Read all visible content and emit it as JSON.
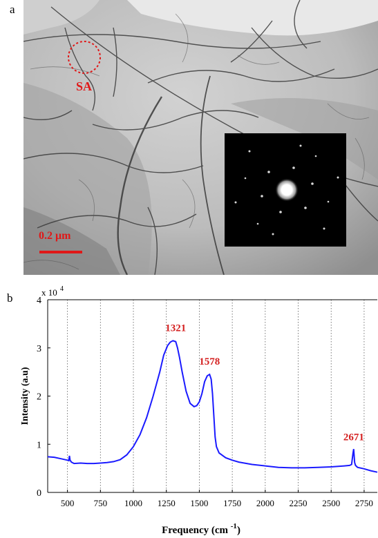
{
  "figure": {
    "panel_a_label": "a",
    "panel_b_label": "b",
    "tem": {
      "selected_area_label": "SA",
      "scale_bar_label": "0.2 μm",
      "highlight_color": "#e01818"
    }
  },
  "chart_data": {
    "type": "line",
    "title": "",
    "xlabel": "Frequency (cm",
    "xlabel_superscript": "-1",
    "xlabel_close": ")",
    "ylabel": "Intensity (a.u)",
    "y_multiplier_label": "x 10",
    "y_multiplier_exponent": "4",
    "xlim": [
      350,
      2850
    ],
    "ylim": [
      0,
      4
    ],
    "xticks": [
      "500",
      "750",
      "1000",
      "1250",
      "1500",
      "1750",
      "2000",
      "2250",
      "2500",
      "2750"
    ],
    "xtick_values": [
      500,
      750,
      1000,
      1250,
      1500,
      1750,
      2000,
      2250,
      2500,
      2750
    ],
    "yticks": [
      "0",
      "1",
      "2",
      "3",
      "4"
    ],
    "ytick_values": [
      0,
      1,
      2,
      3,
      4
    ],
    "grid": "vertical dotted",
    "line_color": "#1a1aff",
    "annotation_color": "#d42020",
    "annotations": [
      {
        "text": "1321",
        "x": 1321,
        "y": 3.35
      },
      {
        "text": "1578",
        "x": 1578,
        "y": 2.65
      },
      {
        "text": "2671",
        "x": 2671,
        "y": 1.08
      }
    ],
    "series": [
      {
        "x": [
          350,
          400,
          450,
          500,
          510,
          515,
          520,
          530,
          550,
          600,
          650,
          700,
          750,
          800,
          850,
          900,
          950,
          1000,
          1050,
          1100,
          1150,
          1200,
          1230,
          1260,
          1280,
          1300,
          1310,
          1321,
          1335,
          1350,
          1370,
          1400,
          1430,
          1460,
          1480,
          1500,
          1520,
          1540,
          1560,
          1578,
          1590,
          1600,
          1610,
          1620,
          1630,
          1650,
          1700,
          1750,
          1800,
          1900,
          2000,
          2100,
          2200,
          2300,
          2400,
          2500,
          2600,
          2640,
          2655,
          2665,
          2671,
          2678,
          2685,
          2700,
          2750,
          2800,
          2850
        ],
        "y": [
          0.74,
          0.73,
          0.7,
          0.67,
          0.66,
          0.76,
          0.67,
          0.63,
          0.6,
          0.61,
          0.6,
          0.6,
          0.61,
          0.62,
          0.64,
          0.68,
          0.78,
          0.95,
          1.2,
          1.55,
          2.0,
          2.5,
          2.85,
          3.05,
          3.12,
          3.15,
          3.14,
          3.13,
          3.0,
          2.8,
          2.5,
          2.1,
          1.85,
          1.78,
          1.8,
          1.88,
          2.05,
          2.3,
          2.42,
          2.45,
          2.35,
          2.05,
          1.6,
          1.15,
          0.95,
          0.82,
          0.72,
          0.67,
          0.63,
          0.58,
          0.55,
          0.52,
          0.51,
          0.51,
          0.52,
          0.53,
          0.55,
          0.56,
          0.58,
          0.8,
          0.9,
          0.62,
          0.56,
          0.52,
          0.49,
          0.45,
          0.42
        ]
      }
    ]
  }
}
